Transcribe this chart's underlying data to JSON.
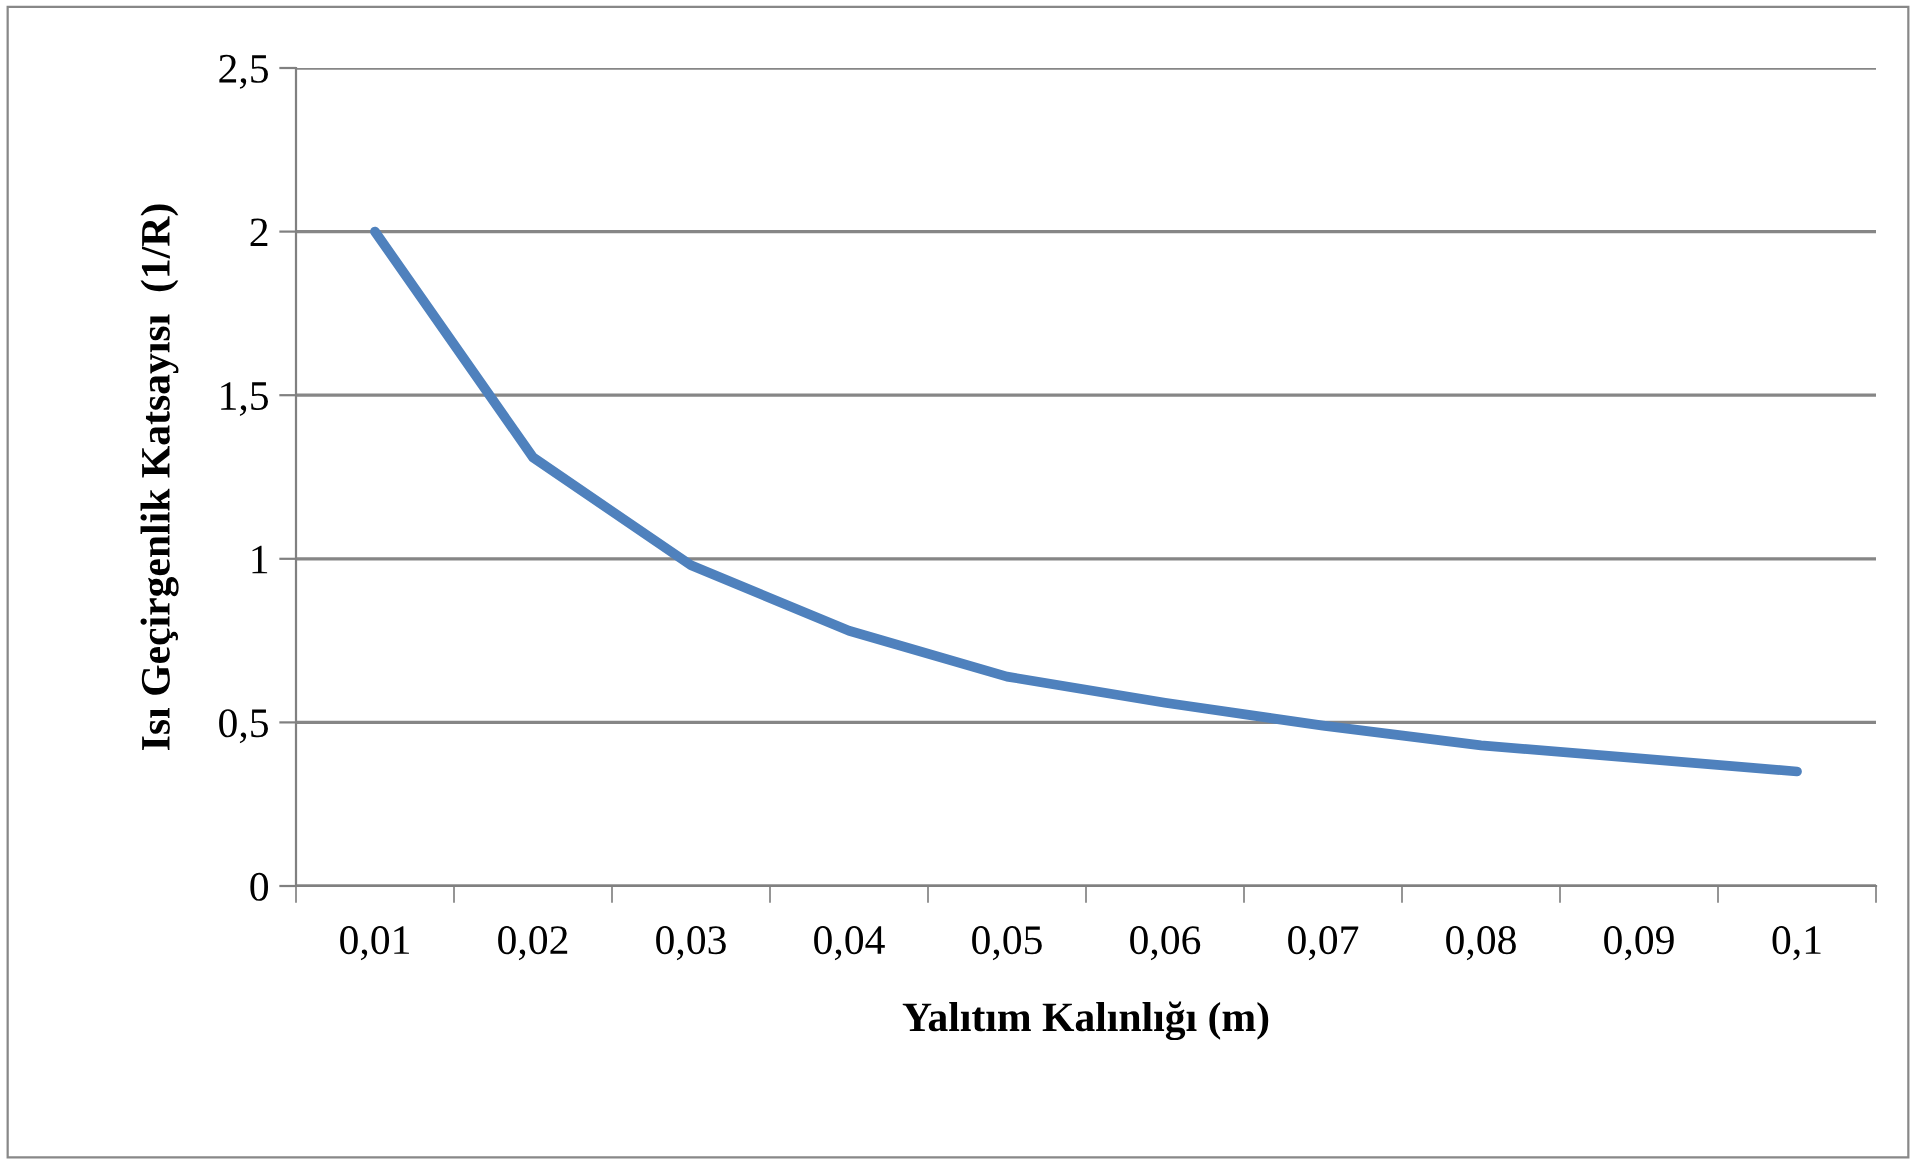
{
  "chart_data": {
    "type": "line",
    "xlabel": "Yalıtım Kalınlığı (m)",
    "ylabel": "Isı Geçirgenlik Katsayısı  (1/R)",
    "categories": [
      "0,01",
      "0,02",
      "0,03",
      "0,04",
      "0,05",
      "0,06",
      "0,07",
      "0,08",
      "0,09",
      "0,1"
    ],
    "series": [
      {
        "color": "#4f81bd",
        "values": [
          2.0,
          1.31,
          0.98,
          0.78,
          0.64,
          0.56,
          0.49,
          0.43,
          0.39,
          0.35
        ]
      }
    ],
    "ylim": [
      0,
      2.5
    ],
    "yticks": [
      0,
      {
        "value": 0.5,
        "label": "0,5"
      },
      1,
      {
        "value": 1.5,
        "label": "1,5"
      },
      2,
      {
        "value": 2.5,
        "label": "2,5"
      }
    ],
    "grid": "y",
    "marker": "none",
    "line_style": "solid"
  }
}
